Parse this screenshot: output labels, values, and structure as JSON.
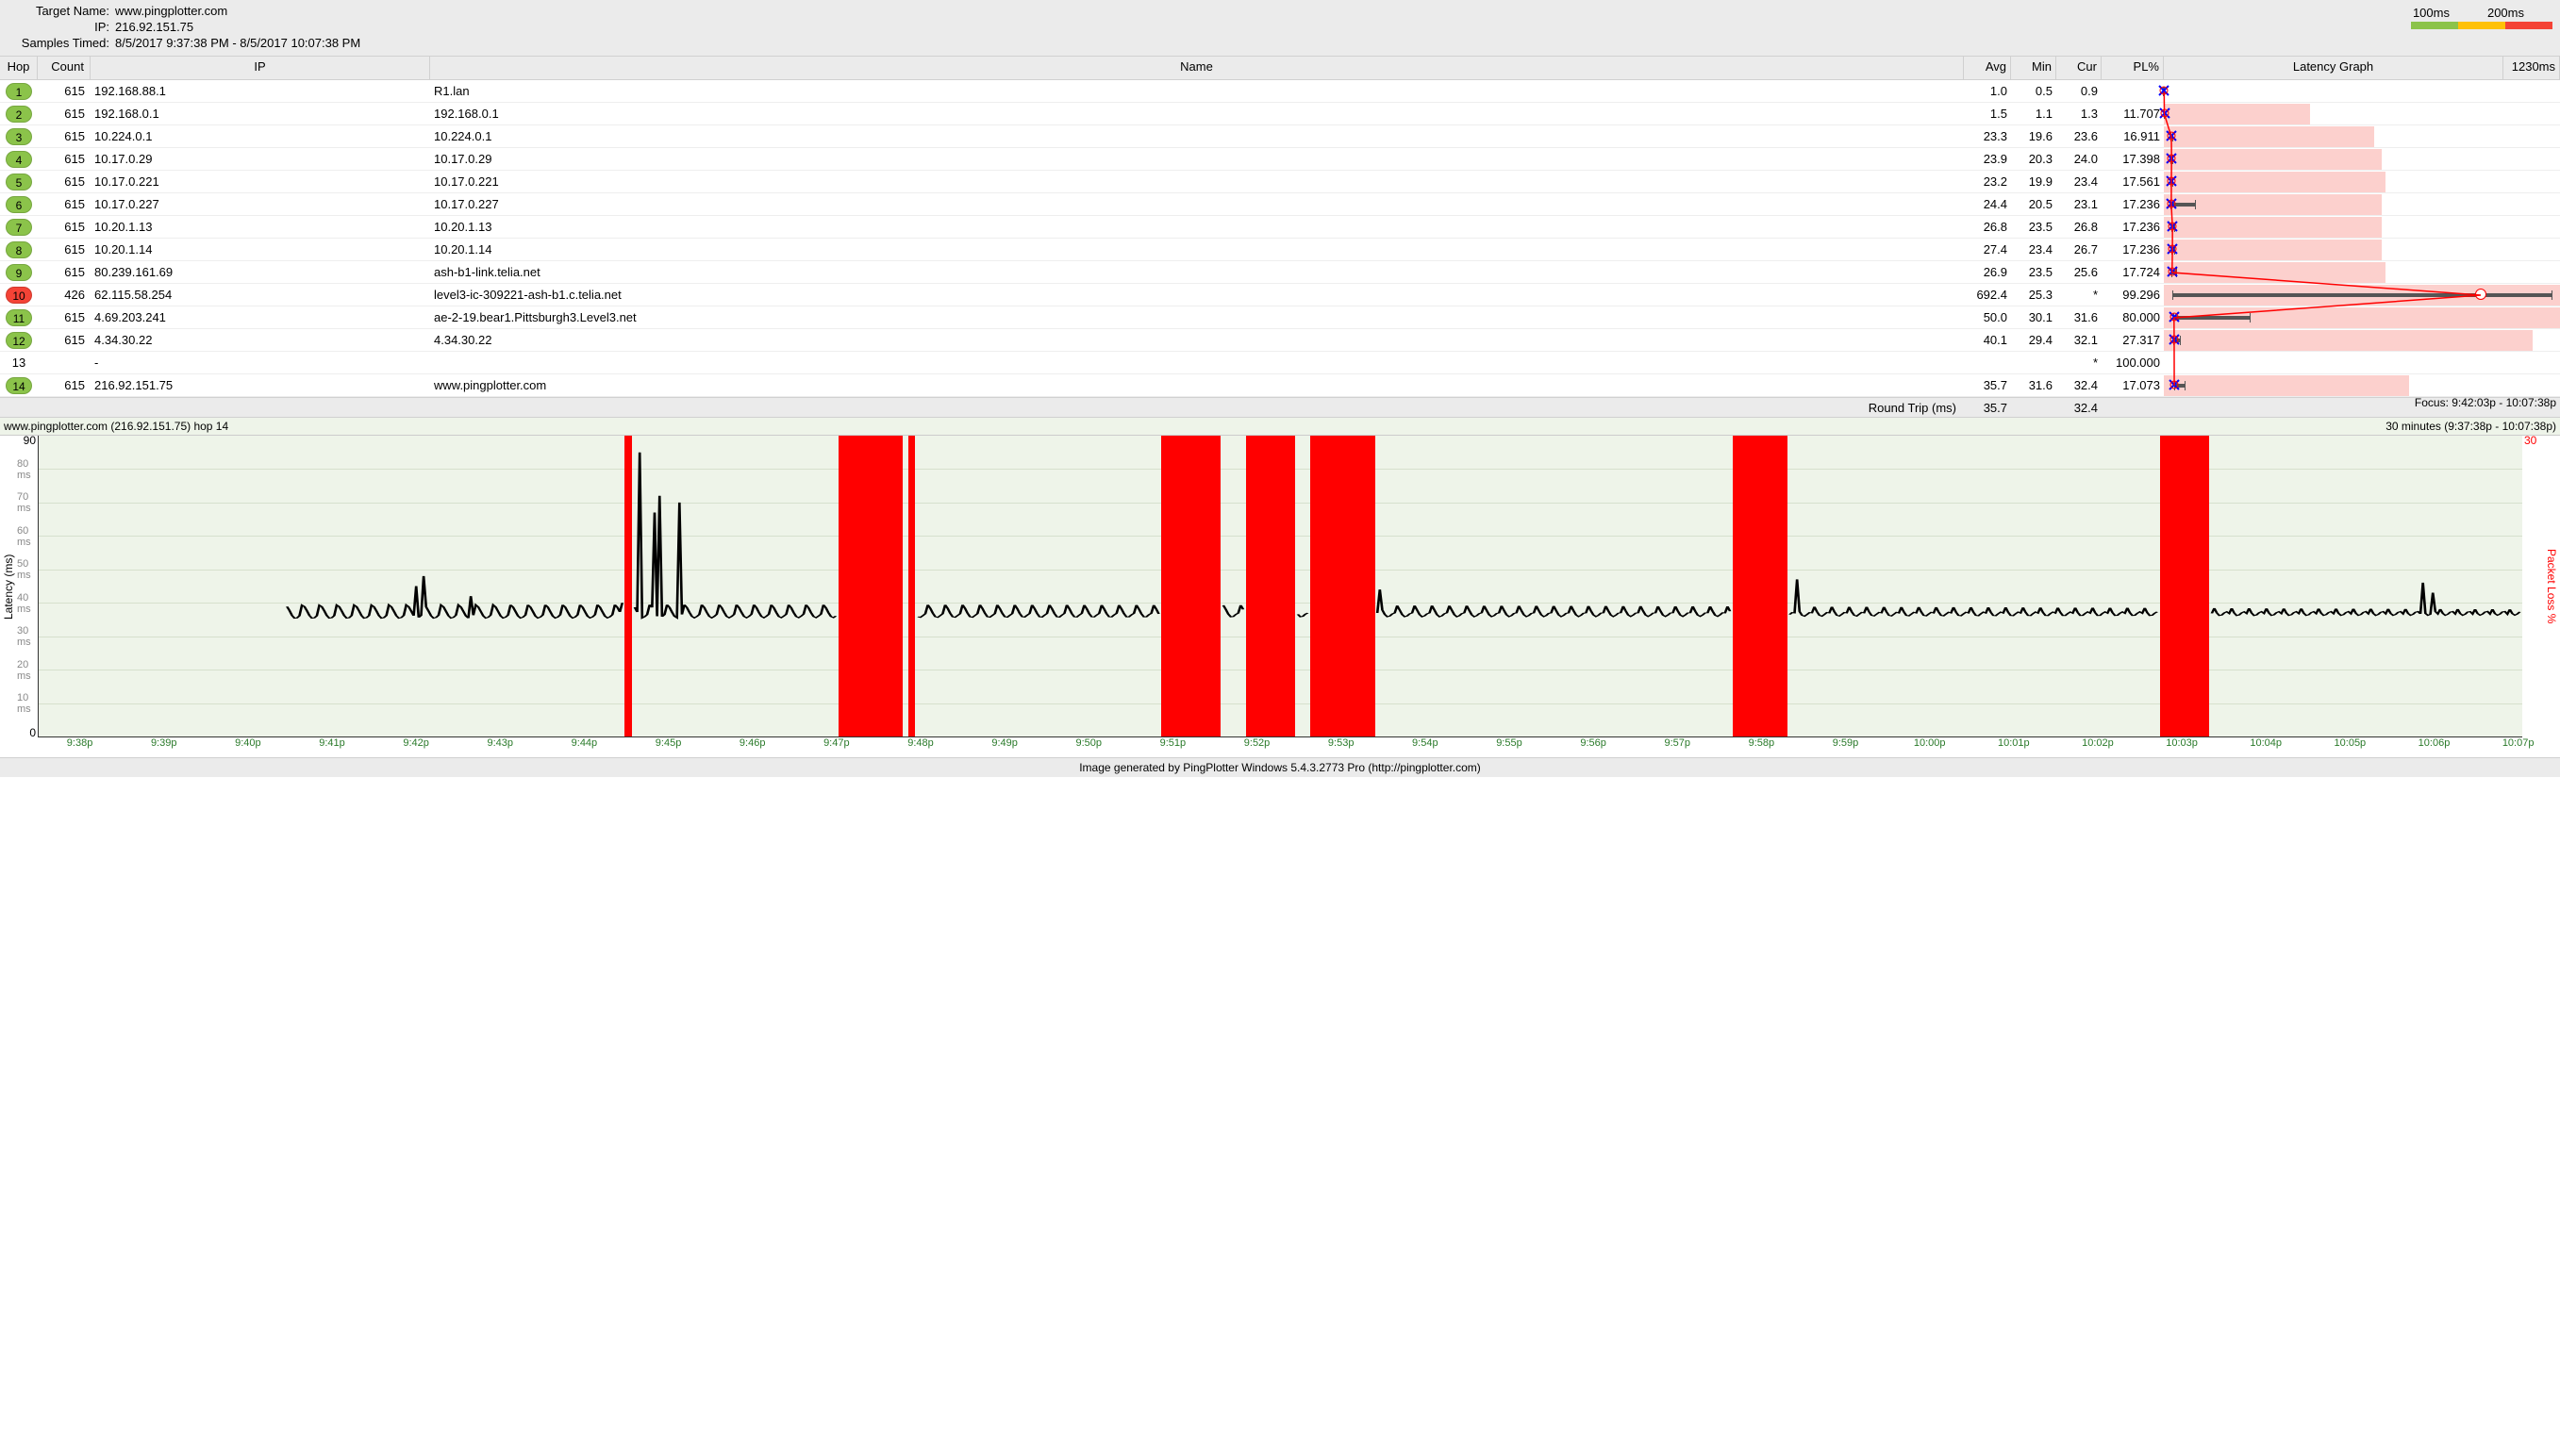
{
  "header": {
    "target_name_label": "Target Name:",
    "target_name": "www.pingplotter.com",
    "ip_label": "IP:",
    "ip": "216.92.151.75",
    "samples_label": "Samples Timed:",
    "samples": "8/5/2017 9:37:38 PM - 8/5/2017 10:07:38 PM",
    "legend_100": "100ms",
    "legend_200": "200ms",
    "legend_colors": [
      "#8bc34a",
      "#ffc107",
      "#f44336"
    ]
  },
  "columns": {
    "hop": "Hop",
    "count": "Count",
    "ip": "IP",
    "name": "Name",
    "avg": "Avg",
    "min": "Min",
    "cur": "Cur",
    "pl": "PL%",
    "latency_graph": "Latency Graph",
    "graph_max": "1230ms"
  },
  "graph_bg": {
    "good_color": "#d5ecc5",
    "warn_color": "#ffefc1",
    "bad_color": "#fbd7d1",
    "good_pct": 8.1,
    "warn_pct": 8.1
  },
  "hops": [
    {
      "n": "1",
      "count": "615",
      "ip": "192.168.88.1",
      "name": "R1.lan",
      "avg": "1.0",
      "min": "0.5",
      "cur": "0.9",
      "pl": "",
      "badge": "#8bc34a",
      "pl_pct": 0,
      "err_l": 0.04,
      "err_r": 0.12,
      "mark": 0.08
    },
    {
      "n": "2",
      "count": "615",
      "ip": "192.168.0.1",
      "name": "192.168.0.1",
      "avg": "1.5",
      "min": "1.1",
      "cur": "1.3",
      "pl": "11.707",
      "badge": "#8bc34a",
      "pl_pct": 37,
      "err_l": 0.09,
      "err_r": 0.16,
      "mark": 0.12
    },
    {
      "n": "3",
      "count": "615",
      "ip": "10.224.0.1",
      "name": "10.224.0.1",
      "avg": "23.3",
      "min": "19.6",
      "cur": "23.6",
      "pl": "16.911",
      "badge": "#8bc34a",
      "pl_pct": 53,
      "err_l": 1.6,
      "err_r": 2.4,
      "mark": 1.9
    },
    {
      "n": "4",
      "count": "615",
      "ip": "10.17.0.29",
      "name": "10.17.0.29",
      "avg": "23.9",
      "min": "20.3",
      "cur": "24.0",
      "pl": "17.398",
      "badge": "#8bc34a",
      "pl_pct": 55,
      "err_l": 1.65,
      "err_r": 2.5,
      "mark": 1.95
    },
    {
      "n": "5",
      "count": "615",
      "ip": "10.17.0.221",
      "name": "10.17.0.221",
      "avg": "23.2",
      "min": "19.9",
      "cur": "23.4",
      "pl": "17.561",
      "badge": "#8bc34a",
      "pl_pct": 56,
      "err_l": 1.62,
      "err_r": 2.4,
      "mark": 1.9
    },
    {
      "n": "6",
      "count": "615",
      "ip": "10.17.0.227",
      "name": "10.17.0.227",
      "avg": "24.4",
      "min": "20.5",
      "cur": "23.1",
      "pl": "17.236",
      "badge": "#8bc34a",
      "pl_pct": 55,
      "err_l": 1.67,
      "err_r": 8.0,
      "mark": 1.88
    },
    {
      "n": "7",
      "count": "615",
      "ip": "10.20.1.13",
      "name": "10.20.1.13",
      "avg": "26.8",
      "min": "23.5",
      "cur": "26.8",
      "pl": "17.236",
      "badge": "#8bc34a",
      "pl_pct": 55,
      "err_l": 1.91,
      "err_r": 2.8,
      "mark": 2.18
    },
    {
      "n": "8",
      "count": "615",
      "ip": "10.20.1.14",
      "name": "10.20.1.14",
      "avg": "27.4",
      "min": "23.4",
      "cur": "26.7",
      "pl": "17.236",
      "badge": "#8bc34a",
      "pl_pct": 55,
      "err_l": 1.9,
      "err_r": 2.9,
      "mark": 2.17
    },
    {
      "n": "9",
      "count": "615",
      "ip": "80.239.161.69",
      "name": "ash-b1-link.telia.net",
      "avg": "26.9",
      "min": "23.5",
      "cur": "25.6",
      "pl": "17.724",
      "badge": "#8bc34a",
      "pl_pct": 56,
      "err_l": 1.91,
      "err_r": 3.4,
      "mark": 2.08
    },
    {
      "n": "10",
      "count": "426",
      "ip": "62.115.58.254",
      "name": "level3-ic-309221-ash-b1.c.telia.net",
      "avg": "692.4",
      "min": "25.3",
      "cur": "*",
      "pl": "99.296",
      "badge": "#f44336",
      "pl_pct": 100,
      "err_l": 2.06,
      "err_r": 98,
      "mark": 80,
      "mark_type": "o"
    },
    {
      "n": "11",
      "count": "615",
      "ip": "4.69.203.241",
      "name": "ae-2-19.bear1.Pittsburgh3.Level3.net",
      "avg": "50.0",
      "min": "30.1",
      "cur": "31.6",
      "pl": "80.000",
      "badge": "#8bc34a",
      "pl_pct": 100,
      "err_l": 2.45,
      "err_r": 22,
      "mark": 2.57
    },
    {
      "n": "12",
      "count": "615",
      "ip": "4.34.30.22",
      "name": "4.34.30.22",
      "avg": "40.1",
      "min": "29.4",
      "cur": "32.1",
      "pl": "27.317",
      "badge": "#8bc34a",
      "pl_pct": 93,
      "err_l": 2.39,
      "err_r": 4.2,
      "mark": 2.61
    },
    {
      "n": "13",
      "count": "",
      "ip": "-",
      "name": "",
      "avg": "",
      "min": "",
      "cur": "*",
      "pl": "100.000",
      "badge": "",
      "pl_pct": 0,
      "err_l": null,
      "err_r": null,
      "mark": null
    },
    {
      "n": "14",
      "count": "615",
      "ip": "216.92.151.75",
      "name": "www.pingplotter.com",
      "avg": "35.7",
      "min": "31.6",
      "cur": "32.4",
      "pl": "17.073",
      "badge": "#8bc34a",
      "pl_pct": 62,
      "err_l": 2.57,
      "err_r": 5.5,
      "mark": 2.63
    }
  ],
  "summary": {
    "rtt_label": "Round Trip (ms)",
    "avg": "35.7",
    "cur": "32.4",
    "focus": "Focus: 9:42:03p - 10:07:38p"
  },
  "chart": {
    "title_left": "www.pingplotter.com (216.92.151.75) hop 14",
    "title_right": "30 minutes (9:37:38p - 10:07:38p)",
    "y_max_left": "90",
    "y_zero": "0",
    "y_max_right": "30",
    "y_label": "Latency (ms)",
    "y_label_r": "Packet Loss %",
    "y_ticks": [
      {
        "v": "10 ms",
        "p": 88.9
      },
      {
        "v": "20 ms",
        "p": 77.8
      },
      {
        "v": "30 ms",
        "p": 66.7
      },
      {
        "v": "40 ms",
        "p": 55.6
      },
      {
        "v": "50 ms",
        "p": 44.4
      },
      {
        "v": "60 ms",
        "p": 33.3
      },
      {
        "v": "70 ms",
        "p": 22.2
      },
      {
        "v": "80 ms",
        "p": 11.1
      }
    ],
    "bg": "#eef4e9",
    "loss_bars": [
      {
        "l": 23.6,
        "w": 0.3
      },
      {
        "l": 32.2,
        "w": 2.6
      },
      {
        "l": 35.0,
        "w": 0.3
      },
      {
        "l": 45.2,
        "w": 2.4
      },
      {
        "l": 48.6,
        "w": 2.0
      },
      {
        "l": 51.2,
        "w": 2.6
      },
      {
        "l": 68.2,
        "w": 2.2
      },
      {
        "l": 85.4,
        "w": 2.0
      }
    ],
    "x_ticks": [
      "9:38p",
      "9:39p",
      "9:40p",
      "9:41p",
      "9:42p",
      "9:43p",
      "9:44p",
      "9:45p",
      "9:46p",
      "9:47p",
      "9:48p",
      "9:49p",
      "9:50p",
      "9:51p",
      "9:52p",
      "9:53p",
      "9:54p",
      "9:55p",
      "9:56p",
      "9:57p",
      "9:58p",
      "9:59p",
      "10:00p",
      "10:01p",
      "10:02p",
      "10:03p",
      "10:04p",
      "10:05p",
      "10:06p",
      "10:07p"
    ]
  },
  "footer": "Image generated by PingPlotter Windows 5.4.3.2773 Pro (http://pingplotter.com)"
}
